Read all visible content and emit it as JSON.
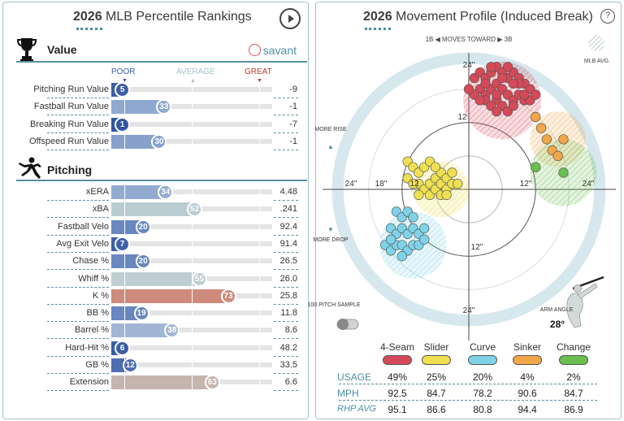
{
  "left": {
    "title_year": "2026",
    "title_rest": " MLB Percentile Rankings",
    "value_section": "Value",
    "pitching_section": "Pitching",
    "brand": "savant",
    "scale": {
      "poor": "POOR",
      "average": "AVERAGE",
      "great": "GREAT"
    },
    "colors": {
      "poor": "#3a5ca7",
      "average": "#b8cfd4",
      "great": "#c0392b"
    },
    "value_rows": [
      {
        "label": "Pitching Run Value",
        "pct": 5,
        "value": "-9",
        "color": "#3d5fa8"
      },
      {
        "label": "Fastball Run Value",
        "pct": 33,
        "value": "-1",
        "color": "#8fa8cf"
      },
      {
        "label": "Breaking Run Value",
        "pct": 1,
        "value": "-7",
        "color": "#3356a2"
      },
      {
        "label": "Offspeed Run Value",
        "pct": 30,
        "value": "-1",
        "color": "#87a1cc"
      }
    ],
    "pitching_rows": [
      {
        "label": "xERA",
        "pct": 34,
        "value": "4.48",
        "color": "#92aad0"
      },
      {
        "label": "xBA",
        "pct": 52,
        "value": ".241",
        "color": "#b9ccd1"
      },
      {
        "label": "Fastball Velo",
        "pct": 20,
        "value": "92.4",
        "color": "#6a88c0"
      },
      {
        "label": "Avg Exit Velo",
        "pct": 7,
        "value": "91.4",
        "color": "#3e60a9"
      },
      {
        "label": "Chase %",
        "pct": 20,
        "value": "26.5",
        "color": "#6a88c0"
      },
      {
        "label": "Whiff %",
        "pct": 55,
        "value": "26.0",
        "color": "#bfcfd1"
      },
      {
        "label": "K %",
        "pct": 73,
        "value": "25.8",
        "color": "#cd8a7d"
      },
      {
        "label": "BB %",
        "pct": 19,
        "value": "11.8",
        "color": "#6886bf"
      },
      {
        "label": "Barrel %",
        "pct": 38,
        "value": "8.6",
        "color": "#a1b6d5"
      },
      {
        "label": "Hard-Hit %",
        "pct": 6,
        "value": "48.2",
        "color": "#3b5da7"
      },
      {
        "label": "GB %",
        "pct": 12,
        "value": "33.5",
        "color": "#4d6db3"
      },
      {
        "label": "Extension",
        "pct": 63,
        "value": "6.6",
        "color": "#c4b5ae"
      }
    ]
  },
  "right": {
    "title_year": "2026",
    "title_rest": " Movement Profile (Induced Break)",
    "help": "?",
    "moves_toward": "1B ◀ MOVES TOWARD ▶ 3B",
    "mlb_avg": "MLB AVG.",
    "more_rise": "MORE RISE",
    "more_drop": "MORE DROP",
    "sample_label": "100 PITCH SAMPLE",
    "arm_angle_label": "ARM ANGLE",
    "arm_angle_value": "28°",
    "axis_labels": {
      "top24": "24\"",
      "top12": "12",
      "bottom12": "12\"",
      "bottom24": "24\"",
      "left24": "24\"",
      "left18": "18\"",
      "left12": "12",
      "right12": "12\"",
      "right24": "24\""
    },
    "pitches": [
      {
        "name": "4-Seam",
        "color": "#d64958",
        "usage": "49%",
        "mph": "92.5",
        "rhp_avg": "95.1",
        "avg": {
          "x": 6,
          "y": 16,
          "r": 7
        },
        "points": [
          [
            1,
            20
          ],
          [
            2,
            21
          ],
          [
            3,
            20
          ],
          [
            4,
            21
          ],
          [
            5,
            22
          ],
          [
            6,
            21
          ],
          [
            7,
            20
          ],
          [
            8,
            21
          ],
          [
            9,
            20
          ],
          [
            10,
            19
          ],
          [
            11,
            18
          ],
          [
            2,
            18
          ],
          [
            3,
            17
          ],
          [
            4,
            18
          ],
          [
            5,
            19
          ],
          [
            6,
            18
          ],
          [
            7,
            17
          ],
          [
            8,
            16
          ],
          [
            9,
            17
          ],
          [
            10,
            16
          ],
          [
            11,
            16
          ],
          [
            3,
            16
          ],
          [
            5,
            16
          ],
          [
            6,
            15
          ],
          [
            7,
            14
          ],
          [
            8,
            15
          ],
          [
            4,
            15
          ],
          [
            1,
            17
          ],
          [
            2,
            16
          ],
          [
            5,
            17
          ],
          [
            9,
            19
          ],
          [
            8,
            19
          ],
          [
            6,
            20
          ],
          [
            4,
            22
          ],
          [
            7,
            22
          ],
          [
            3,
            19
          ],
          [
            10,
            17
          ],
          [
            5,
            14
          ],
          [
            0,
            18
          ],
          [
            12,
            17
          ]
        ]
      },
      {
        "name": "Slider",
        "color": "#eee050",
        "usage": "25%",
        "mph": "84.7",
        "rhp_avg": "86.6",
        "avg": {
          "x": -5,
          "y": 0,
          "r": 5
        },
        "points": [
          [
            -11,
            5
          ],
          [
            -10,
            4
          ],
          [
            -9,
            3
          ],
          [
            -8,
            4
          ],
          [
            -7,
            5
          ],
          [
            -9,
            1
          ],
          [
            -8,
            0
          ],
          [
            -7,
            1
          ],
          [
            -6,
            2
          ],
          [
            -5,
            3
          ],
          [
            -7,
            -1
          ],
          [
            -6,
            0
          ],
          [
            -5,
            1
          ],
          [
            -4,
            2
          ],
          [
            -3,
            3
          ],
          [
            -5,
            -1
          ],
          [
            -4,
            0
          ],
          [
            -3,
            1
          ],
          [
            -11,
            2
          ],
          [
            -10,
            1
          ],
          [
            -6,
            4
          ],
          [
            -4,
            -1
          ],
          [
            -2,
            1
          ],
          [
            -9,
            -1
          ]
        ]
      },
      {
        "name": "Curve",
        "color": "#7fd3e8",
        "usage": "20%",
        "mph": "78.2",
        "rhp_avg": "80.8",
        "avg": {
          "x": -10,
          "y": -10,
          "r": 6
        },
        "points": [
          [
            -13,
            -4
          ],
          [
            -12,
            -5
          ],
          [
            -11,
            -4
          ],
          [
            -14,
            -7
          ],
          [
            -13,
            -8
          ],
          [
            -12,
            -7
          ],
          [
            -11,
            -8
          ],
          [
            -10,
            -7
          ],
          [
            -9,
            -8
          ],
          [
            -8,
            -7
          ],
          [
            -15,
            -10
          ],
          [
            -14,
            -11
          ],
          [
            -13,
            -10
          ],
          [
            -12,
            -10
          ],
          [
            -11,
            -11
          ],
          [
            -10,
            -10
          ],
          [
            -9,
            -10
          ],
          [
            -8,
            -9
          ],
          [
            -14,
            -9
          ],
          [
            -12,
            -12
          ],
          [
            -10,
            -5
          ]
        ]
      },
      {
        "name": "Sinker",
        "color": "#f1a64a",
        "usage": "4%",
        "mph": "90.6",
        "rhp_avg": "94.4",
        "avg": {
          "x": 16,
          "y": 9,
          "r": 5
        },
        "points": [
          [
            12,
            13
          ],
          [
            13,
            11
          ],
          [
            14,
            9
          ],
          [
            15,
            7
          ],
          [
            16,
            6
          ],
          [
            17,
            9
          ]
        ]
      },
      {
        "name": "Change",
        "color": "#6bbf4e",
        "usage": "2%",
        "mph": "84.7",
        "rhp_avg": "86.9",
        "avg": {
          "x": 17,
          "y": 3,
          "r": 6
        },
        "points": [
          [
            12,
            4
          ],
          [
            17,
            3
          ]
        ]
      }
    ],
    "stat_labels": {
      "usage": "USAGE",
      "mph": "MPH",
      "rhp": "RHP AVG"
    }
  }
}
